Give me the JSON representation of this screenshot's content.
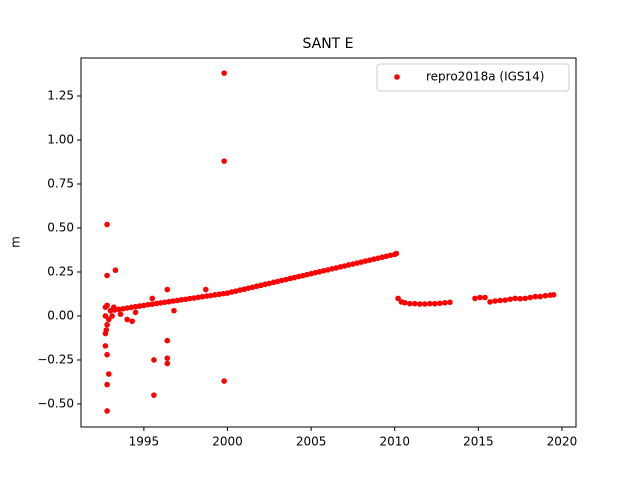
{
  "chart_data": {
    "type": "scatter",
    "title": "SANT E",
    "y_label": "m",
    "legend_position": "upper right",
    "xlim": [
      1991.24,
      2020.84
    ],
    "xticks": [
      1995,
      2000,
      2005,
      2010,
      2015,
      2020
    ],
    "ylim": [
      -0.631,
      1.466
    ],
    "yticks": [
      {
        "value": -0.5,
        "label": "−0.50"
      },
      {
        "value": -0.25,
        "label": "−0.25"
      },
      {
        "value": 0,
        "label": "0.00"
      },
      {
        "value": 0.25,
        "label": "0.25"
      },
      {
        "value": 0.5,
        "label": "0.50"
      },
      {
        "value": 0.75,
        "label": "0.75"
      },
      {
        "value": 1,
        "label": "1.00"
      },
      {
        "value": 1.25,
        "label": "1.25"
      }
    ],
    "x": [
      1993.0,
      1993.25,
      1993.5,
      1993.75,
      1994.0,
      1994.25,
      1994.5,
      1994.75,
      1995.0,
      1995.25,
      1995.5,
      1995.75,
      1996.0,
      1996.25,
      1996.5,
      1996.75,
      1997.0,
      1997.25,
      1997.5,
      1997.75,
      1998.0,
      1998.25,
      1998.5,
      1998.75,
      1999.0,
      1999.25,
      1999.5,
      1999.75,
      2000.0,
      2000.25,
      2000.5,
      2000.75,
      2001.0,
      2001.25,
      2001.5,
      2001.75,
      2002.0,
      2002.25,
      2002.5,
      2002.75,
      2003.0,
      2003.25,
      2003.5,
      2003.75,
      2004.0,
      2004.25,
      2004.5,
      2004.75,
      2005.0,
      2005.25,
      2005.5,
      2005.75,
      2006.0,
      2006.25,
      2006.5,
      2006.75,
      2007.0,
      2007.25,
      2007.5,
      2007.75,
      2008.0,
      2008.25,
      2008.5,
      2008.75,
      2009.0,
      2009.25,
      2009.5,
      2009.75,
      2010.0,
      2010.1,
      2010.2,
      2010.4,
      2010.6,
      2010.9,
      2011.2,
      2011.5,
      2011.8,
      2012.1,
      2012.4,
      2012.7,
      2013.0,
      2013.3,
      2014.8,
      2015.1,
      2015.4,
      2015.7,
      2016.0,
      2016.3,
      2016.6,
      2016.9,
      2017.2,
      2017.5,
      2017.8,
      2018.1,
      2018.4,
      2018.7,
      2019.0,
      2019.3,
      2019.5,
      1992.7,
      1992.7,
      1992.8,
      1992.8,
      1992.9,
      1993.1,
      1993.2,
      1993.6,
      1994.0,
      1994.3,
      1994.5,
      1992.7,
      1992.75,
      1999.8,
      1999.8,
      1992.8,
      1992.8,
      1993.3,
      1999.8,
      1995.6,
      1992.8,
      1992.8,
      1992.9,
      1992.8,
      1992.7,
      1996.4,
      1996.4,
      1996.4,
      1995.6,
      1998.7,
      1996.4,
      1995.5,
      1996.8
    ],
    "series": [
      {
        "name": "repro2018a (IGS14)",
        "color": "#ff0000",
        "values": [
          0.03,
          0.034,
          0.038,
          0.041,
          0.045,
          0.049,
          0.053,
          0.056,
          0.06,
          0.064,
          0.067,
          0.071,
          0.074,
          0.078,
          0.081,
          0.085,
          0.088,
          0.092,
          0.095,
          0.099,
          0.102,
          0.106,
          0.109,
          0.113,
          0.116,
          0.12,
          0.123,
          0.127,
          0.13,
          0.136,
          0.141,
          0.147,
          0.152,
          0.158,
          0.163,
          0.169,
          0.174,
          0.18,
          0.185,
          0.191,
          0.196,
          0.202,
          0.207,
          0.213,
          0.218,
          0.224,
          0.229,
          0.235,
          0.24,
          0.246,
          0.251,
          0.257,
          0.262,
          0.268,
          0.273,
          0.279,
          0.284,
          0.29,
          0.295,
          0.301,
          0.306,
          0.312,
          0.317,
          0.323,
          0.328,
          0.334,
          0.339,
          0.345,
          0.35,
          0.355,
          0.1,
          0.08,
          0.075,
          0.07,
          0.07,
          0.068,
          0.068,
          0.07,
          0.07,
          0.072,
          0.075,
          0.078,
          0.1,
          0.105,
          0.105,
          0.08,
          0.085,
          0.088,
          0.09,
          0.095,
          0.1,
          0.098,
          0.1,
          0.105,
          0.11,
          0.11,
          0.115,
          0.118,
          0.12,
          0.0,
          0.05,
          -0.05,
          0.06,
          -0.02,
          0.0,
          0.05,
          0.01,
          -0.02,
          -0.03,
          0.02,
          -0.1,
          -0.08,
          1.38,
          0.88,
          0.52,
          0.23,
          0.26,
          -0.37,
          -0.45,
          -0.54,
          -0.39,
          -0.33,
          -0.22,
          -0.17,
          -0.24,
          -0.27,
          -0.14,
          -0.25,
          0.15,
          0.15,
          0.1,
          0.03
        ]
      }
    ]
  }
}
